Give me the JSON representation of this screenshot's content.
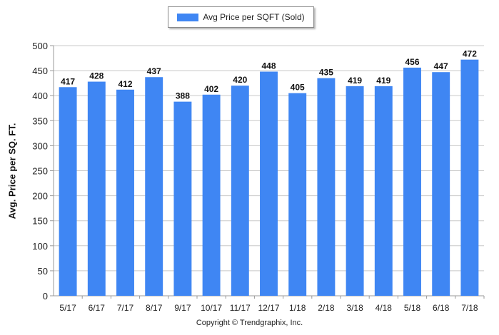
{
  "chart_data": {
    "type": "bar",
    "categories": [
      "5/17",
      "6/17",
      "7/17",
      "8/17",
      "9/17",
      "10/17",
      "11/17",
      "12/17",
      "1/18",
      "2/18",
      "3/18",
      "4/18",
      "5/18",
      "6/18",
      "7/18"
    ],
    "series": [
      {
        "name": "Avg Price per SQFT (Sold)",
        "values": [
          417,
          428,
          412,
          437,
          388,
          402,
          420,
          448,
          405,
          435,
          419,
          419,
          456,
          447,
          472
        ]
      }
    ],
    "ylabel": "Avg. Price per SQ. FT.",
    "xlabel": "",
    "ylim": [
      0,
      500
    ],
    "yticks": [
      0,
      50,
      100,
      150,
      200,
      250,
      300,
      350,
      400,
      450,
      500
    ],
    "grid": true,
    "legend_position": "top-center",
    "data_labels": true,
    "colors": {
      "bar": "#3f86f3",
      "grid": "#c8c8c8",
      "axis": "#999999"
    }
  },
  "footer": {
    "copyright": "Copyright © Trendgraphix, Inc."
  }
}
